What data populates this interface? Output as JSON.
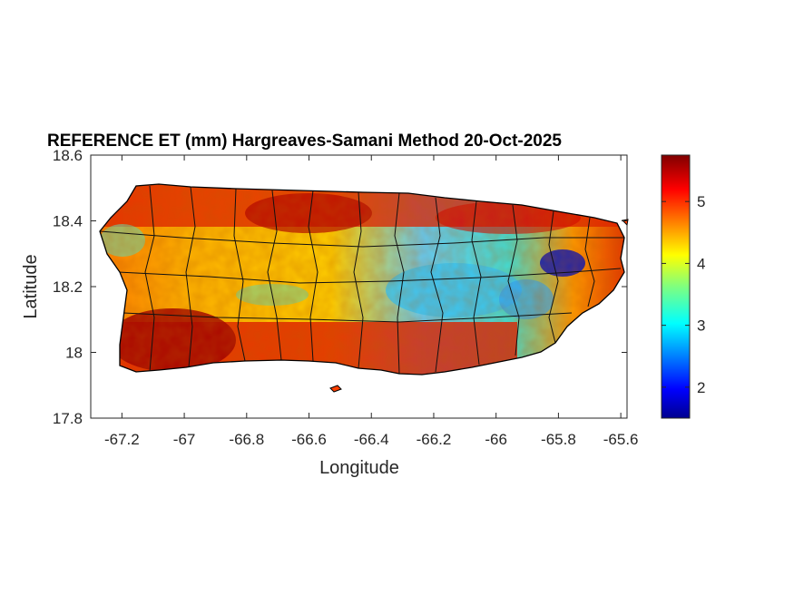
{
  "chart_data": {
    "type": "heatmap",
    "title": "REFERENCE ET (mm) Hargreaves-Samani Method  20-Oct-2025",
    "xlabel": "Longitude",
    "ylabel": "Latitude",
    "xlim": [
      -67.3,
      -65.58
    ],
    "ylim": [
      17.8,
      18.6
    ],
    "xticks": [
      "-67.2",
      "-67",
      "-66.8",
      "-66.6",
      "-66.4",
      "-66.2",
      "-66",
      "-65.8",
      "-65.6"
    ],
    "xtick_values": [
      -67.2,
      -67,
      -66.8,
      -66.6,
      -66.4,
      -66.2,
      -66,
      -65.8,
      -65.6
    ],
    "yticks": [
      "18.6",
      "18.4",
      "18.2",
      "18",
      "17.8"
    ],
    "ytick_values": [
      18.6,
      18.4,
      18.2,
      18.0,
      17.8
    ],
    "colorbar": {
      "colormap": "jet",
      "range": [
        1.5,
        5.75
      ],
      "ticks": [
        "2",
        "3",
        "4",
        "5"
      ],
      "tick_values": [
        2,
        3,
        4,
        5
      ]
    },
    "region": "Puerto Rico (municipality boundaries)",
    "value_range_note": "low values (~2-3) in central-east interior, high values (~5.5) along south and north coasts"
  },
  "colors": {
    "low": "#00008f",
    "mid": "#7fff7f",
    "high": "#800000",
    "border": "#000000"
  }
}
